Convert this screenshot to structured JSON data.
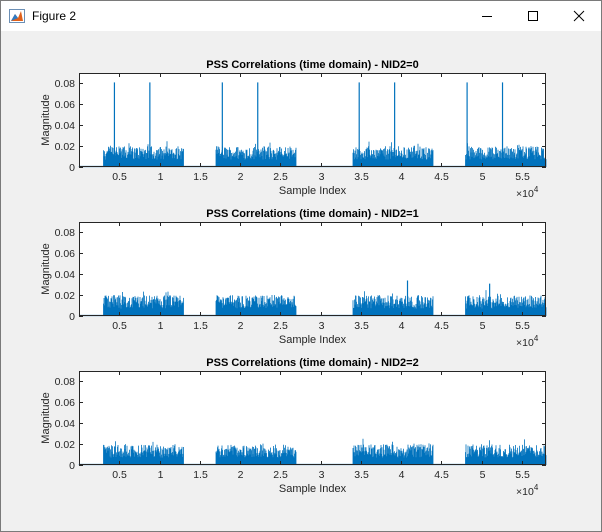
{
  "window": {
    "title": "Figure 2",
    "icons": [
      "matlab-figure-icon",
      "minimize-icon",
      "maximize-icon",
      "close-icon"
    ]
  },
  "colors": {
    "line": "#0072bd",
    "axes_bg": "#ffffff",
    "figure_bg": "#f0f0f0"
  },
  "chart_data": [
    {
      "type": "line",
      "title": "PSS Correlations (time domain) - NID2=0",
      "xlabel": "Sample Index",
      "ylabel": "Magnitude",
      "x_exponent": "×10",
      "x_exponent_power": "4",
      "xlim": [
        0,
        58000
      ],
      "ylim": [
        0,
        0.09
      ],
      "xticks": [
        5000,
        10000,
        15000,
        20000,
        25000,
        30000,
        35000,
        40000,
        45000,
        50000,
        55000
      ],
      "xticklabels": [
        "0.5",
        "1",
        "1.5",
        "2",
        "2.5",
        "3",
        "3.5",
        "4",
        "4.5",
        "5",
        "5.5"
      ],
      "yticks": [
        0,
        0.02,
        0.04,
        0.06,
        0.08
      ],
      "yticklabels": [
        "0",
        "0.02",
        "0.04",
        "0.06",
        "0.08"
      ],
      "bursts": [
        [
          3000,
          13000
        ],
        [
          17000,
          27000
        ],
        [
          34000,
          44000
        ],
        [
          48000,
          58000
        ]
      ],
      "noise_level": 0.02,
      "peaks": [
        [
          4400,
          0.081
        ],
        [
          8800,
          0.081
        ],
        [
          17800,
          0.081
        ],
        [
          22200,
          0.081
        ],
        [
          34800,
          0.081
        ],
        [
          39200,
          0.081
        ],
        [
          48200,
          0.081
        ],
        [
          52600,
          0.081
        ]
      ]
    },
    {
      "type": "line",
      "title": "PSS Correlations (time domain) - NID2=1",
      "xlabel": "Sample Index",
      "ylabel": "Magnitude",
      "x_exponent": "×10",
      "x_exponent_power": "4",
      "xlim": [
        0,
        58000
      ],
      "ylim": [
        0,
        0.09
      ],
      "xticks": [
        5000,
        10000,
        15000,
        20000,
        25000,
        30000,
        35000,
        40000,
        45000,
        50000,
        55000
      ],
      "xticklabels": [
        "0.5",
        "1",
        "1.5",
        "2",
        "2.5",
        "3",
        "3.5",
        "4",
        "4.5",
        "5",
        "5.5"
      ],
      "yticks": [
        0,
        0.02,
        0.04,
        0.06,
        0.08
      ],
      "yticklabels": [
        "0",
        "0.02",
        "0.04",
        "0.06",
        "0.08"
      ],
      "bursts": [
        [
          3000,
          13000
        ],
        [
          17000,
          27000
        ],
        [
          34000,
          44000
        ],
        [
          48000,
          58000
        ]
      ],
      "noise_level": 0.02,
      "peaks": [
        [
          40800,
          0.034
        ],
        [
          51000,
          0.031
        ]
      ]
    },
    {
      "type": "line",
      "title": "PSS Correlations (time domain) - NID2=2",
      "xlabel": "Sample Index",
      "ylabel": "Magnitude",
      "x_exponent": "×10",
      "x_exponent_power": "4",
      "xlim": [
        0,
        58000
      ],
      "ylim": [
        0,
        0.09
      ],
      "xticks": [
        5000,
        10000,
        15000,
        20000,
        25000,
        30000,
        35000,
        40000,
        45000,
        50000,
        55000
      ],
      "xticklabels": [
        "0.5",
        "1",
        "1.5",
        "2",
        "2.5",
        "3",
        "3.5",
        "4",
        "4.5",
        "5",
        "5.5"
      ],
      "yticks": [
        0,
        0.02,
        0.04,
        0.06,
        0.08
      ],
      "yticklabels": [
        "0",
        "0.02",
        "0.04",
        "0.06",
        "0.08"
      ],
      "bursts": [
        [
          3000,
          13000
        ],
        [
          17000,
          27000
        ],
        [
          34000,
          44000
        ],
        [
          48000,
          58000
        ]
      ],
      "noise_level": 0.02,
      "peaks": []
    }
  ]
}
